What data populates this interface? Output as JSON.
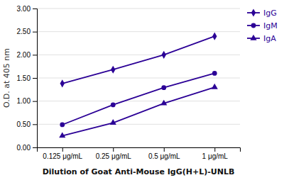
{
  "chart_data": {
    "type": "line",
    "xlabel": "Dilution of Goat Anti-Mouse IgG(H+L)-UNLB",
    "ylabel": "O.D. at 405 nm",
    "categories": [
      "0.125 μg/mL",
      "0.25 μg/mL",
      "0.5 μg/mL",
      "1 μg/mL"
    ],
    "series": [
      {
        "name": "IgG",
        "color": "#2b0096",
        "marker": "diamond",
        "values": [
          1.38,
          1.68,
          2.0,
          2.4
        ]
      },
      {
        "name": "IgM",
        "color": "#2b0096",
        "marker": "circle",
        "values": [
          0.49,
          0.92,
          1.29,
          1.6
        ]
      },
      {
        "name": "IgA",
        "color": "#2b0096",
        "marker": "triangle",
        "values": [
          0.25,
          0.53,
          0.95,
          1.3
        ]
      }
    ],
    "ylim": [
      0.0,
      3.0
    ],
    "yticks": [
      {
        "value": 0.0,
        "label": "0.00"
      },
      {
        "value": 0.5,
        "label": "0.50"
      },
      {
        "value": 1.0,
        "label": "1.00"
      },
      {
        "value": 1.5,
        "label": "1.50"
      },
      {
        "value": 2.0,
        "label": "2.00"
      },
      {
        "value": 2.5,
        "label": "2.50"
      },
      {
        "value": 3.0,
        "label": "3.00"
      }
    ],
    "grid": true,
    "legend": "right"
  }
}
